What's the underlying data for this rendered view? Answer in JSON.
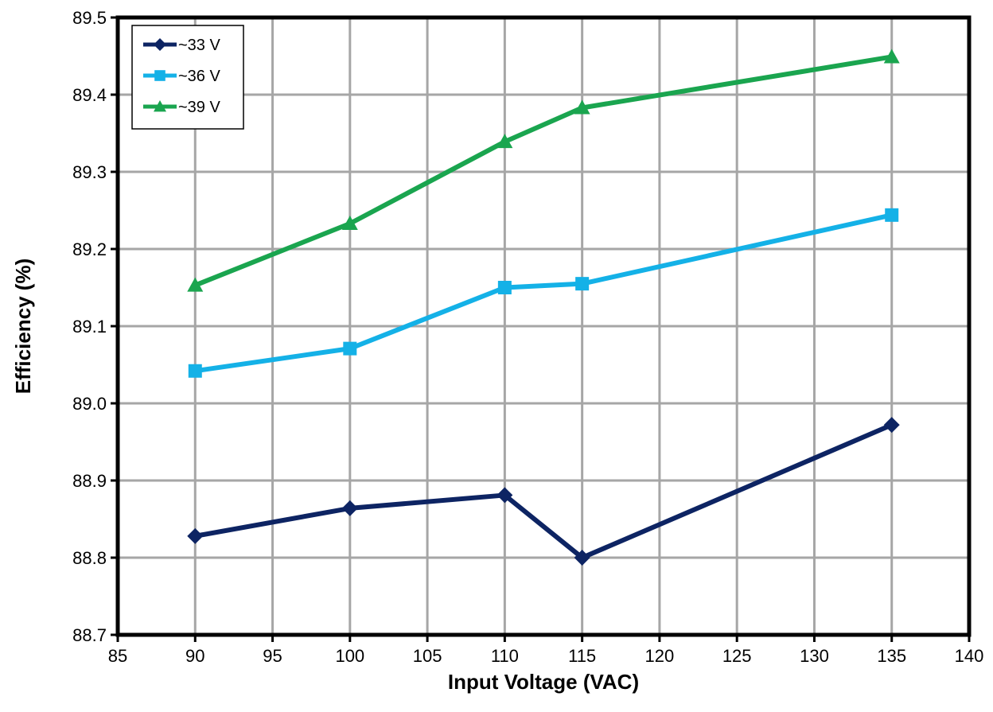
{
  "chart_data": {
    "type": "line",
    "title": "",
    "xlabel": "Input Voltage (VAC)",
    "ylabel": "Efficiency (%)",
    "xlim": [
      85,
      140
    ],
    "ylim": [
      88.7,
      89.5
    ],
    "x_ticks": [
      "85",
      "90",
      "95",
      "100",
      "105",
      "110",
      "115",
      "120",
      "125",
      "130",
      "135",
      "140"
    ],
    "y_ticks": [
      "88.7",
      "88.8",
      "88.9",
      "89.0",
      "89.1",
      "89.2",
      "89.3",
      "89.4",
      "89.5"
    ],
    "grid": true,
    "legend_position": "top-left",
    "series": [
      {
        "name": "~33 V",
        "color": "#0d2463",
        "marker": "diamond",
        "x": [
          90,
          100,
          110,
          115,
          135
        ],
        "y": [
          88.828,
          88.864,
          88.881,
          88.8,
          88.972
        ]
      },
      {
        "name": "~36 V",
        "color": "#14b1e7",
        "marker": "square",
        "x": [
          90,
          100,
          110,
          115,
          135
        ],
        "y": [
          89.042,
          89.071,
          89.15,
          89.155,
          89.244
        ]
      },
      {
        "name": "~39 V",
        "color": "#1aa54f",
        "marker": "triangle",
        "x": [
          90,
          100,
          110,
          115,
          135
        ],
        "y": [
          89.153,
          89.233,
          89.339,
          89.383,
          89.449
        ]
      }
    ]
  }
}
